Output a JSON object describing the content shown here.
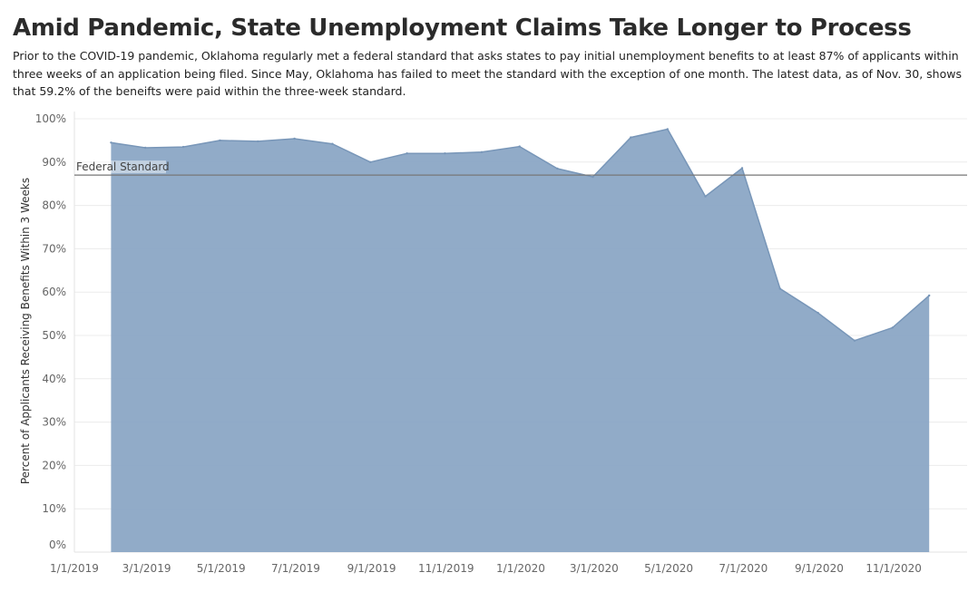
{
  "header": {
    "title": "Amid Pandemic, State Unemployment Claims Take Longer to Process",
    "subtitle": "Prior to the COVID-19 pandemic, Oklahoma regularly met a federal standard that asks states to pay initial unemployment benefits to at least 87% of applicants within three weeks of an application being filed. Since May, Oklahoma has failed to meet the standard with the exception of one month. The latest data, as of Nov. 30, shows that 59.2% of the beneifts were paid within the three-week standard."
  },
  "chart_data": {
    "type": "area",
    "title": "Amid Pandemic, State Unemployment Claims Take Longer to Process",
    "ylabel": "Percent of Applicants Receiving Benefits Within 3 Weeks",
    "xlabel": "",
    "x": [
      "2019-01-31",
      "2019-02-28",
      "2019-03-31",
      "2019-04-30",
      "2019-05-31",
      "2019-06-30",
      "2019-07-31",
      "2019-08-31",
      "2019-09-30",
      "2019-10-31",
      "2019-11-30",
      "2019-12-31",
      "2020-01-31",
      "2020-02-29",
      "2020-03-31",
      "2020-04-30",
      "2020-05-31",
      "2020-06-30",
      "2020-07-31",
      "2020-08-31",
      "2020-09-30",
      "2020-10-31",
      "2020-11-30"
    ],
    "values": [
      94.5,
      93.3,
      93.5,
      95.0,
      94.8,
      95.4,
      94.2,
      90.0,
      92.0,
      92.0,
      92.3,
      93.6,
      88.5,
      86.6,
      95.7,
      97.6,
      82.1,
      88.6,
      60.8,
      55.2,
      48.8,
      51.8,
      59.2
    ],
    "ylim": [
      0,
      100
    ],
    "yticks": [
      "0%",
      "10%",
      "20%",
      "30%",
      "40%",
      "50%",
      "60%",
      "70%",
      "80%",
      "90%",
      "100%"
    ],
    "xtick_labels": [
      "1/1/2019",
      "3/1/2019",
      "5/1/2019",
      "7/1/2019",
      "9/1/2019",
      "11/1/2019",
      "1/1/2020",
      "3/1/2020",
      "5/1/2020",
      "7/1/2020",
      "9/1/2020",
      "11/1/2020"
    ],
    "xtick_dates": [
      "2019-01-01",
      "2019-03-01",
      "2019-05-01",
      "2019-07-01",
      "2019-09-01",
      "2019-11-01",
      "2020-01-01",
      "2020-03-01",
      "2020-05-01",
      "2020-07-01",
      "2020-09-01",
      "2020-11-01"
    ],
    "xlim": [
      "2019-01-01",
      "2020-12-31"
    ],
    "reference_line": {
      "label": "Federal Standard",
      "value": 87
    },
    "grid": true,
    "colors": {
      "area": "#8ba7c5",
      "area_stroke": "#7896b8",
      "reference": "#777777",
      "grid": "#ececec"
    }
  }
}
